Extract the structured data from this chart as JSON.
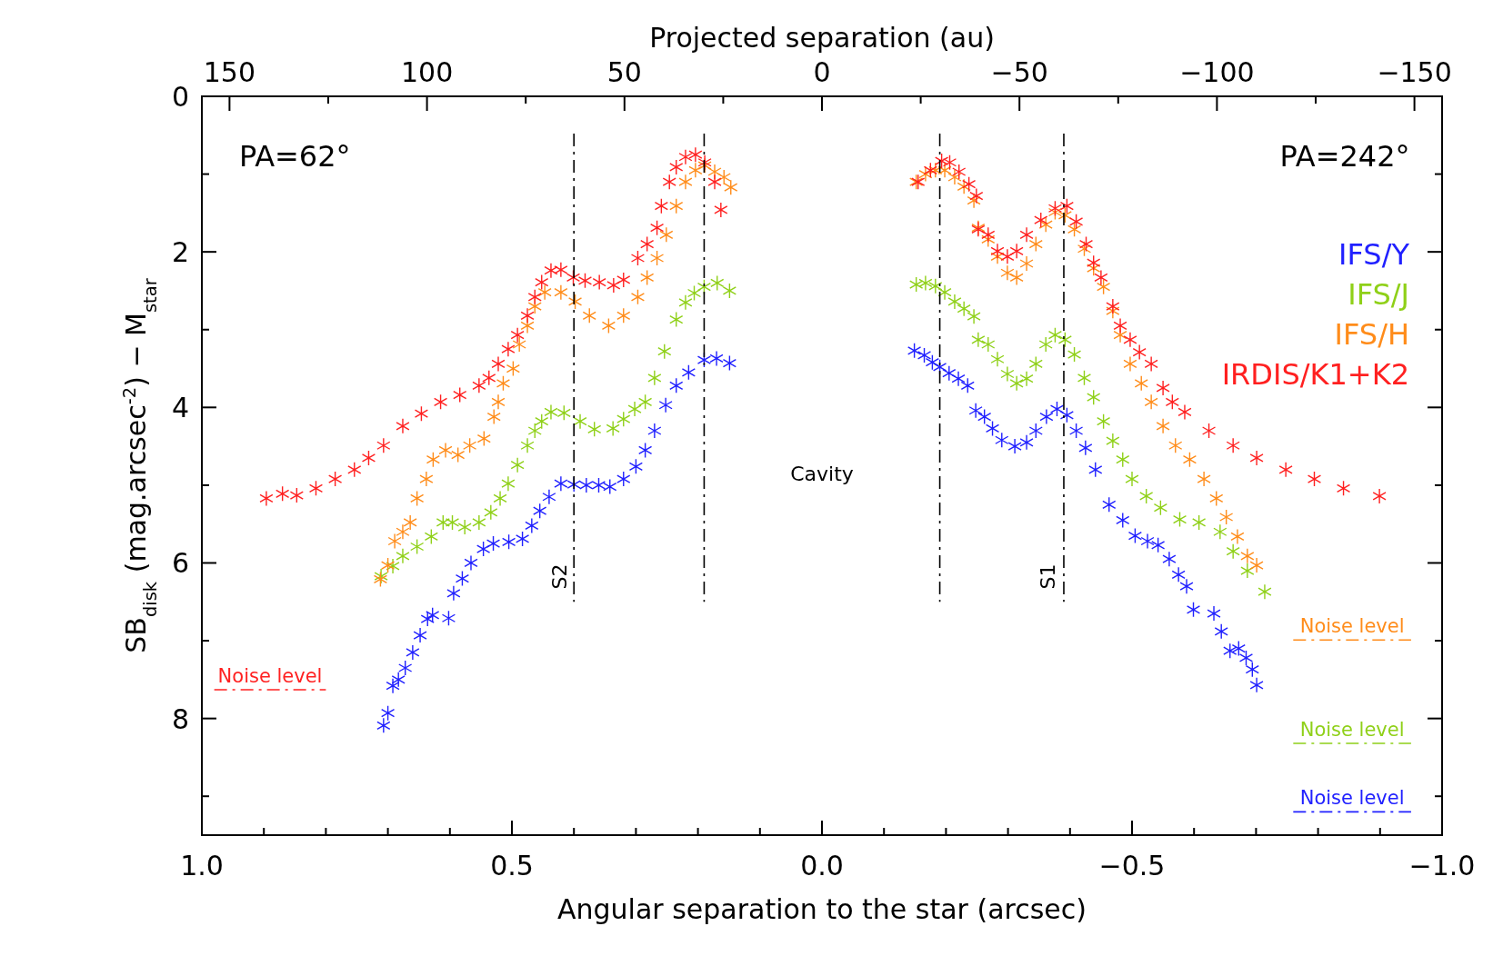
{
  "chart_data": {
    "type": "scatter",
    "xlabel": "Angular separation to the star (arcsec)",
    "x2label": "Projected separation (au)",
    "ylabel": "SB$_{disk}$ (mag.arcsec$^{-2}$) − M$_{star}$",
    "xlim": [
      1.0,
      -1.0
    ],
    "ylim": [
      9.5,
      0
    ],
    "x2lim": [
      157,
      -157
    ],
    "xticks": [
      {
        "value": 1,
        "label": "1.0"
      },
      {
        "value": 0.9,
        "label": null
      },
      {
        "value": 0.8,
        "label": null
      },
      {
        "value": 0.7,
        "label": null
      },
      {
        "value": 0.6,
        "label": null
      },
      {
        "value": 0.5,
        "label": "0.5"
      },
      {
        "value": 0.4,
        "label": null
      },
      {
        "value": 0.3,
        "label": null
      },
      {
        "value": 0.2,
        "label": null
      },
      {
        "value": 0.1,
        "label": null
      },
      {
        "value": 0,
        "label": "0.0"
      },
      {
        "value": -0.1,
        "label": null
      },
      {
        "value": -0.2,
        "label": null
      },
      {
        "value": -0.3,
        "label": null
      },
      {
        "value": -0.4,
        "label": null
      },
      {
        "value": -0.5,
        "label": "−0.5"
      },
      {
        "value": -0.6,
        "label": null
      },
      {
        "value": -0.7,
        "label": null
      },
      {
        "value": -0.8,
        "label": null
      },
      {
        "value": -0.9,
        "label": null
      },
      {
        "value": -1,
        "label": "−1.0"
      }
    ],
    "x2ticks": [
      {
        "value": 150,
        "label": "150"
      },
      {
        "value": 125,
        "label": null
      },
      {
        "value": 100,
        "label": "100"
      },
      {
        "value": 75,
        "label": null
      },
      {
        "value": 50,
        "label": "50"
      },
      {
        "value": 25,
        "label": null
      },
      {
        "value": 0,
        "label": "0"
      },
      {
        "value": -25,
        "label": null
      },
      {
        "value": -50,
        "label": "−50"
      },
      {
        "value": -75,
        "label": null
      },
      {
        "value": -100,
        "label": "−100"
      },
      {
        "value": -125,
        "label": null
      },
      {
        "value": -150,
        "label": "−150"
      }
    ],
    "yticks": [
      0,
      {
        "value": 1,
        "label": null
      },
      2,
      {
        "value": 3,
        "label": null
      },
      4,
      {
        "value": 5,
        "label": null
      },
      6,
      {
        "value": 7,
        "label": null
      },
      8,
      {
        "value": 9,
        "label": null
      }
    ],
    "marker": "cross",
    "legend": "right",
    "annotations": [
      "PA=62°",
      "PA=242°",
      "Cavity",
      "S2",
      "S1"
    ],
    "series": [
      {
        "name": "IFS/Y",
        "color": "#2020ff",
        "x": [
          0.707,
          0.7,
          0.692,
          0.683,
          0.672,
          0.66,
          0.648,
          0.636,
          0.628,
          0.602,
          0.594,
          0.58,
          0.566,
          0.546,
          0.53,
          0.505,
          0.483,
          0.468,
          0.455,
          0.44,
          0.421,
          0.4,
          0.38,
          0.36,
          0.342,
          0.32,
          0.3,
          0.285,
          0.27,
          0.252,
          0.235,
          0.215,
          0.19,
          0.17,
          0.149,
          -0.149,
          -0.165,
          -0.178,
          -0.19,
          -0.205,
          -0.22,
          -0.235,
          -0.248,
          -0.262,
          -0.275,
          -0.29,
          -0.311,
          -0.33,
          -0.345,
          -0.362,
          -0.379,
          -0.395,
          -0.41,
          -0.425,
          -0.441,
          -0.463,
          -0.485,
          -0.505,
          -0.525,
          -0.542,
          -0.56,
          -0.575,
          -0.588,
          -0.599,
          -0.632,
          -0.644,
          -0.658,
          -0.672,
          -0.684,
          -0.694,
          -0.701
        ],
        "values": [
          8.09,
          7.93,
          7.58,
          7.5,
          7.35,
          7.15,
          6.93,
          6.72,
          6.67,
          6.71,
          6.39,
          6.2,
          6.0,
          5.82,
          5.75,
          5.73,
          5.69,
          5.52,
          5.33,
          5.15,
          4.98,
          4.99,
          5.0,
          5.0,
          5.02,
          4.92,
          4.76,
          4.55,
          4.3,
          3.97,
          3.72,
          3.55,
          3.39,
          3.37,
          3.43,
          3.27,
          3.33,
          3.42,
          3.48,
          3.56,
          3.63,
          3.72,
          4.04,
          4.12,
          4.27,
          4.42,
          4.5,
          4.45,
          4.3,
          4.12,
          4.02,
          4.1,
          4.3,
          4.52,
          4.8,
          5.25,
          5.45,
          5.65,
          5.72,
          5.77,
          5.95,
          6.15,
          6.3,
          6.6,
          6.65,
          6.88,
          7.13,
          7.1,
          7.22,
          7.37,
          7.57
        ]
      },
      {
        "name": "IFS/J",
        "color": "#8fd018",
        "x": [
          0.711,
          0.692,
          0.676,
          0.653,
          0.63,
          0.611,
          0.596,
          0.576,
          0.553,
          0.534,
          0.519,
          0.506,
          0.491,
          0.475,
          0.463,
          0.452,
          0.437,
          0.416,
          0.39,
          0.367,
          0.337,
          0.32,
          0.302,
          0.285,
          0.27,
          0.254,
          0.235,
          0.22,
          0.206,
          0.19,
          0.169,
          0.149,
          -0.152,
          -0.167,
          -0.183,
          -0.198,
          -0.214,
          -0.229,
          -0.245,
          -0.252,
          -0.268,
          -0.283,
          -0.299,
          -0.314,
          -0.33,
          -0.345,
          -0.361,
          -0.376,
          -0.392,
          -0.407,
          -0.423,
          -0.438,
          -0.454,
          -0.469,
          -0.485,
          -0.5,
          -0.523,
          -0.546,
          -0.577,
          -0.608,
          -0.642,
          -0.663,
          -0.686,
          -0.714
        ],
        "values": [
          6.17,
          6.04,
          5.91,
          5.79,
          5.66,
          5.48,
          5.48,
          5.54,
          5.48,
          5.35,
          5.17,
          4.98,
          4.74,
          4.49,
          4.3,
          4.18,
          4.06,
          4.07,
          4.18,
          4.28,
          4.27,
          4.15,
          4.02,
          3.93,
          3.62,
          3.28,
          2.87,
          2.65,
          2.53,
          2.45,
          2.4,
          2.5,
          2.42,
          2.4,
          2.44,
          2.52,
          2.64,
          2.73,
          2.83,
          3.13,
          3.19,
          3.38,
          3.57,
          3.69,
          3.63,
          3.44,
          3.19,
          3.07,
          3.13,
          3.32,
          3.62,
          3.87,
          4.18,
          4.43,
          4.67,
          4.92,
          5.14,
          5.29,
          5.44,
          5.48,
          5.6,
          5.85,
          6.1,
          6.37
        ]
      },
      {
        "name": "IFS/H",
        "color": "#ff8c1a",
        "x": [
          0.712,
          0.7,
          0.689,
          0.676,
          0.664,
          0.653,
          0.638,
          0.627,
          0.607,
          0.587,
          0.568,
          0.545,
          0.529,
          0.522,
          0.514,
          0.498,
          0.488,
          0.475,
          0.463,
          0.447,
          0.421,
          0.398,
          0.375,
          0.344,
          0.32,
          0.297,
          0.282,
          0.266,
          0.251,
          0.235,
          0.22,
          0.204,
          0.189,
          0.173,
          0.158,
          0.147,
          -0.152,
          -0.167,
          -0.183,
          -0.198,
          -0.214,
          -0.229,
          -0.245,
          -0.252,
          -0.268,
          -0.283,
          -0.299,
          -0.314,
          -0.33,
          -0.345,
          -0.361,
          -0.376,
          -0.392,
          -0.407,
          -0.423,
          -0.438,
          -0.454,
          -0.469,
          -0.481,
          -0.497,
          -0.515,
          -0.531,
          -0.55,
          -0.57,
          -0.593,
          -0.616,
          -0.636,
          -0.652,
          -0.67,
          -0.686,
          -0.701
        ],
        "values": [
          6.21,
          6.03,
          5.72,
          5.6,
          5.48,
          5.17,
          4.92,
          4.67,
          4.55,
          4.61,
          4.49,
          4.4,
          4.12,
          3.93,
          3.69,
          3.5,
          3.19,
          2.95,
          2.7,
          2.52,
          2.52,
          2.64,
          2.82,
          2.95,
          2.82,
          2.58,
          2.33,
          2.08,
          1.78,
          1.41,
          1.1,
          0.95,
          0.89,
          0.97,
          1.04,
          1.17,
          1.1,
          1.0,
          0.95,
          0.95,
          1.04,
          1.16,
          1.34,
          1.69,
          1.84,
          2.06,
          2.27,
          2.33,
          2.15,
          1.9,
          1.65,
          1.49,
          1.53,
          1.71,
          1.96,
          2.21,
          2.45,
          2.76,
          3.07,
          3.44,
          3.69,
          3.93,
          4.24,
          4.49,
          4.67,
          4.92,
          5.17,
          5.41,
          5.66,
          5.91,
          6.03
        ]
      },
      {
        "name": "IRDIS/K1+K2",
        "color": "#ff2020",
        "x": [
          0.896,
          0.87,
          0.847,
          0.816,
          0.785,
          0.754,
          0.731,
          0.707,
          0.676,
          0.646,
          0.615,
          0.584,
          0.553,
          0.537,
          0.522,
          0.506,
          0.491,
          0.475,
          0.463,
          0.452,
          0.437,
          0.421,
          0.401,
          0.382,
          0.359,
          0.336,
          0.32,
          0.297,
          0.282,
          0.266,
          0.259,
          0.246,
          0.235,
          0.22,
          0.204,
          0.189,
          0.173,
          0.163,
          -0.155,
          -0.175,
          -0.193,
          -0.206,
          -0.221,
          -0.237,
          -0.249,
          -0.252,
          -0.268,
          -0.283,
          -0.299,
          -0.314,
          -0.33,
          -0.353,
          -0.376,
          -0.395,
          -0.41,
          -0.426,
          -0.438,
          -0.45,
          -0.469,
          -0.481,
          -0.497,
          -0.512,
          -0.531,
          -0.55,
          -0.565,
          -0.585,
          -0.624,
          -0.663,
          -0.701,
          -0.748,
          -0.794,
          -0.841,
          -0.899
        ],
        "values": [
          5.17,
          5.11,
          5.13,
          5.04,
          4.92,
          4.8,
          4.65,
          4.49,
          4.24,
          4.08,
          3.93,
          3.84,
          3.72,
          3.62,
          3.44,
          3.25,
          3.07,
          2.82,
          2.58,
          2.39,
          2.24,
          2.23,
          2.33,
          2.37,
          2.39,
          2.43,
          2.36,
          2.08,
          1.9,
          1.69,
          1.41,
          1.1,
          0.91,
          0.78,
          0.75,
          0.85,
          1.1,
          1.46,
          1.1,
          0.95,
          0.83,
          0.85,
          0.97,
          1.13,
          1.28,
          1.71,
          1.78,
          1.99,
          2.06,
          1.99,
          1.78,
          1.59,
          1.44,
          1.41,
          1.61,
          1.9,
          2.14,
          2.33,
          2.7,
          2.95,
          3.13,
          3.29,
          3.44,
          3.75,
          3.93,
          4.06,
          4.3,
          4.49,
          4.65,
          4.8,
          4.92,
          5.04,
          5.14
        ]
      },
      {
        "type": "line",
        "name": "Noise level",
        "color": "#ff2020",
        "marker": "none",
        "line_style": "dashed",
        "x": [
          0.98,
          0.8
        ],
        "values": [
          7.63,
          7.63
        ]
      },
      {
        "type": "line",
        "name": "Noise level",
        "color": "#ff8c1a",
        "marker": "none",
        "line_style": "dashed",
        "x": [
          -0.76,
          -0.95
        ],
        "values": [
          6.99,
          6.99
        ]
      },
      {
        "type": "line",
        "name": "Noise level",
        "color": "#8fd018",
        "marker": "none",
        "line_style": "dashed",
        "x": [
          -0.76,
          -0.95
        ],
        "values": [
          8.32,
          8.32
        ]
      },
      {
        "type": "line",
        "name": "Noise level",
        "color": "#2020ff",
        "marker": "none",
        "line_style": "dashed",
        "x": [
          -0.76,
          -0.95
        ],
        "values": [
          9.2,
          9.2
        ]
      },
      {
        "type": "line",
        "color": "#000000",
        "marker": "none",
        "line_style": "dashed",
        "x": [
          0.4,
          0.4
        ],
        "values": [
          0.48,
          6.5
        ]
      },
      {
        "type": "line",
        "color": "#000000",
        "marker": "none",
        "line_style": "dashed",
        "x": [
          0.19,
          0.19
        ],
        "values": [
          0.48,
          6.5
        ]
      },
      {
        "type": "line",
        "color": "#000000",
        "marker": "none",
        "line_style": "dashed",
        "x": [
          -0.19,
          -0.19
        ],
        "values": [
          0.48,
          6.5
        ]
      },
      {
        "type": "line",
        "color": "#000000",
        "marker": "none",
        "line_style": "dashed",
        "x": [
          -0.39,
          -0.39
        ],
        "values": [
          0.48,
          6.5
        ]
      }
    ]
  }
}
